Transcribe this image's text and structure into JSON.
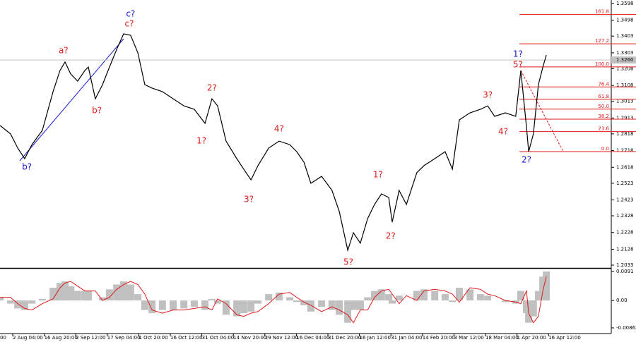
{
  "chart_data": {
    "type": "line",
    "color": "#000000",
    "x": [
      0.6,
      0.93,
      1.16,
      1.38,
      1.61,
      1.94,
      2.28,
      2.5,
      2.66,
      2.84,
      3.06,
      3.29,
      3.4,
      3.62,
      3.85,
      4.07,
      4.3,
      4.52,
      4.74,
      4.97,
      5.19,
      5.42,
      5.75,
      6.09,
      6.43,
      6.76,
      7.1,
      7.32,
      7.5,
      7.77,
      8.11,
      8.33,
      8.56,
      8.78,
      9.12,
      9.45,
      9.79,
      10.01,
      10.24,
      10.46,
      10.8,
      11.13,
      11.36,
      11.63,
      11.81,
      12.03,
      12.26,
      12.48,
      12.7,
      12.93,
      13.04,
      13.26,
      13.49,
      13.82,
      14.05,
      14.39,
      14.72,
      14.95,
      15.17,
      15.51,
      15.84,
      16.07,
      16.29,
      16.63,
      16.96,
      17.12,
      17.3,
      17.37,
      17.52,
      17.68,
      17.82,
      17.93
    ],
    "values": [
      1.2868,
      1.2818,
      1.2733,
      1.267,
      1.2754,
      1.2839,
      1.3071,
      1.3197,
      1.3248,
      1.3176,
      1.3134,
      1.3197,
      1.3218,
      1.3028,
      1.3113,
      1.3218,
      1.3324,
      1.3417,
      1.3408,
      1.3303,
      1.3113,
      1.3092,
      1.3071,
      1.3028,
      1.2986,
      1.2965,
      1.2881,
      1.3028,
      1.2986,
      1.2775,
      1.267,
      1.2607,
      1.2543,
      1.2628,
      1.2733,
      1.2775,
      1.2754,
      1.2712,
      1.2649,
      1.2522,
      1.2564,
      1.248,
      1.2354,
      1.2122,
      1.2227,
      1.2164,
      1.2311,
      1.2396,
      1.2459,
      1.2438,
      1.229,
      1.248,
      1.2396,
      1.2586,
      1.2628,
      1.267,
      1.2712,
      1.2607,
      1.2902,
      1.2944,
      1.2965,
      1.2986,
      1.2923,
      1.2944,
      1.2923,
      1.3197,
      1.286,
      1.2712,
      1.2818,
      1.3113,
      1.3218,
      1.329
    ],
    "xlim": [
      0,
      19
    ],
    "xticks": [
      {
        "value": 0,
        "label": "00"
      },
      {
        "value": 1,
        "label": "2 Aug 04:00"
      },
      {
        "value": 2,
        "label": "16 Aug 20:00"
      },
      {
        "value": 3,
        "label": "2 Sep 12:00"
      },
      {
        "value": 4,
        "label": "17 Sep 04:00"
      },
      {
        "value": 5,
        "label": "1 Oct 20:00"
      },
      {
        "value": 6,
        "label": "16 Oct 12:00"
      },
      {
        "value": 7,
        "label": "31 Oct 04:00"
      },
      {
        "value": 8,
        "label": "14 Nov 20:00"
      },
      {
        "value": 9,
        "label": "29 Nov 12:00"
      },
      {
        "value": 10,
        "label": "16 Dec 04:00"
      },
      {
        "value": 11,
        "label": "31 Dec 20:00"
      },
      {
        "value": 12,
        "label": "16 Jan 12:00"
      },
      {
        "value": 13,
        "label": "31 Jan 04:00"
      },
      {
        "value": 14,
        "label": "14 Feb 20:00"
      },
      {
        "value": 15,
        "label": "3 Mar 12:00"
      },
      {
        "value": 16,
        "label": "18 Mar 04:00"
      },
      {
        "value": 17,
        "label": "1 Apr 20:00"
      },
      {
        "value": 18,
        "label": "16 Apr 12:00"
      }
    ],
    "ylim": [
      1.2016,
      1.3619
    ],
    "yticks": [
      1.3598,
      1.3498,
      1.3403,
      1.3303,
      1.3208,
      1.3108,
      1.3013,
      1.2913,
      1.2818,
      1.2718,
      1.2618,
      1.2523,
      1.2423,
      1.2328,
      1.2228,
      1.2128,
      1.2033
    ],
    "last_price": {
      "value": 1.326,
      "label": "1.3260"
    },
    "fib_levels": [
      {
        "label": "161.8",
        "value": 1.3532
      },
      {
        "label": "127.2",
        "value": 1.3357
      },
      {
        "label": "100.0",
        "value": 1.3219
      },
      {
        "label": "76.4",
        "value": 1.3099
      },
      {
        "label": "61.8",
        "value": 1.3025
      },
      {
        "label": "50.0",
        "value": 1.2966
      },
      {
        "label": "38.2",
        "value": 1.2906
      },
      {
        "label": "23.6",
        "value": 1.2832
      },
      {
        "label": "0.0",
        "value": 1.2712
      }
    ],
    "annotations": [
      {
        "text": "c?",
        "x": 4.74,
        "y": 1.3535,
        "color": "#1515c8"
      },
      {
        "text": "c?",
        "x": 4.7,
        "y": 1.3476,
        "color": "#e01a1a"
      },
      {
        "text": "a?",
        "x": 2.61,
        "y": 1.3315,
        "color": "#e01a1a"
      },
      {
        "text": "b?",
        "x": 3.67,
        "y": 1.2957,
        "color": "#e01a1a"
      },
      {
        "text": "b?",
        "x": 1.45,
        "y": 1.2619,
        "color": "#1515c8"
      },
      {
        "text": "2?",
        "x": 7.32,
        "y": 1.3092,
        "color": "#e01a1a"
      },
      {
        "text": "1?",
        "x": 6.99,
        "y": 1.2775,
        "color": "#e01a1a"
      },
      {
        "text": "4?",
        "x": 9.45,
        "y": 1.2847,
        "color": "#e01a1a"
      },
      {
        "text": "3?",
        "x": 8.49,
        "y": 1.2425,
        "color": "#e01a1a"
      },
      {
        "text": "1?",
        "x": 12.59,
        "y": 1.2573,
        "color": "#e01a1a"
      },
      {
        "text": "2?",
        "x": 12.99,
        "y": 1.2206,
        "color": "#e01a1a"
      },
      {
        "text": "5?",
        "x": 11.65,
        "y": 1.205,
        "color": "#e01a1a"
      },
      {
        "text": "3?",
        "x": 16.07,
        "y": 1.305,
        "color": "#e01a1a"
      },
      {
        "text": "4?",
        "x": 16.56,
        "y": 1.283,
        "color": "#e01a1a"
      },
      {
        "text": "5?",
        "x": 17.03,
        "y": 1.3231,
        "color": "#e01a1a"
      },
      {
        "text": "1?",
        "x": 17.03,
        "y": 1.3294,
        "color": "#1515c8"
      },
      {
        "text": "2?",
        "x": 17.3,
        "y": 1.2662,
        "color": "#1515c8"
      }
    ],
    "oscillator": {
      "color": "#c0c0c0",
      "signal_color": "#e01a1a",
      "ylim": [
        -0.0104,
        0.01
      ],
      "yticks": [
        0.0091,
        {
          "value": 0,
          "label": "0.00"
        },
        -0.00862
      ],
      "values": [
        0.001,
        -0.001,
        -0.0025,
        -0.003,
        -0.001,
        0.0005,
        0.004,
        0.0055,
        0.006,
        0.0045,
        0.003,
        0.003,
        0.003,
        0.0,
        0.001,
        0.0035,
        0.005,
        0.006,
        0.005,
        0.002,
        -0.003,
        -0.004,
        -0.003,
        -0.003,
        -0.0025,
        -0.002,
        -0.003,
        0.0005,
        -0.001,
        -0.0045,
        -0.005,
        -0.004,
        -0.0035,
        -0.001,
        0.002,
        0.0025,
        0.001,
        -0.0005,
        -0.0015,
        -0.0035,
        -0.002,
        -0.003,
        -0.0045,
        -0.007,
        -0.003,
        -0.003,
        0.001,
        0.003,
        0.0035,
        0.002,
        -0.001,
        0.0015,
        0.0,
        0.003,
        0.0035,
        0.003,
        0.002,
        -0.0005,
        0.004,
        0.0035,
        0.002,
        0.0015,
        0.0,
        -0.0005,
        -0.001,
        0.003,
        -0.004,
        -0.007,
        -0.005,
        0.003,
        0.0075,
        0.0091
      ],
      "signal": [
        0.001,
        0.001,
        -0.001,
        -0.0025,
        -0.003,
        -0.001,
        0.0005,
        0.004,
        0.0055,
        0.006,
        0.0045,
        0.003,
        0.003,
        0.003,
        0.0,
        0.001,
        0.0035,
        0.005,
        0.006,
        0.005,
        0.002,
        -0.003,
        -0.004,
        -0.003,
        -0.003,
        -0.0025,
        -0.002,
        -0.003,
        0.0005,
        -0.001,
        -0.0045,
        -0.005,
        -0.004,
        -0.0035,
        -0.001,
        0.002,
        0.0025,
        0.001,
        -0.0005,
        -0.0015,
        -0.0035,
        -0.002,
        -0.003,
        -0.0045,
        -0.007,
        -0.003,
        -0.003,
        0.001,
        0.003,
        0.0035,
        0.002,
        -0.001,
        0.0015,
        0.0,
        0.003,
        0.0035,
        0.003,
        0.002,
        -0.0005,
        0.004,
        0.0035,
        0.002,
        0.0015,
        0.0,
        -0.0005,
        -0.001,
        0.003,
        -0.004,
        -0.007,
        -0.005,
        0.003,
        0.0075
      ]
    }
  }
}
